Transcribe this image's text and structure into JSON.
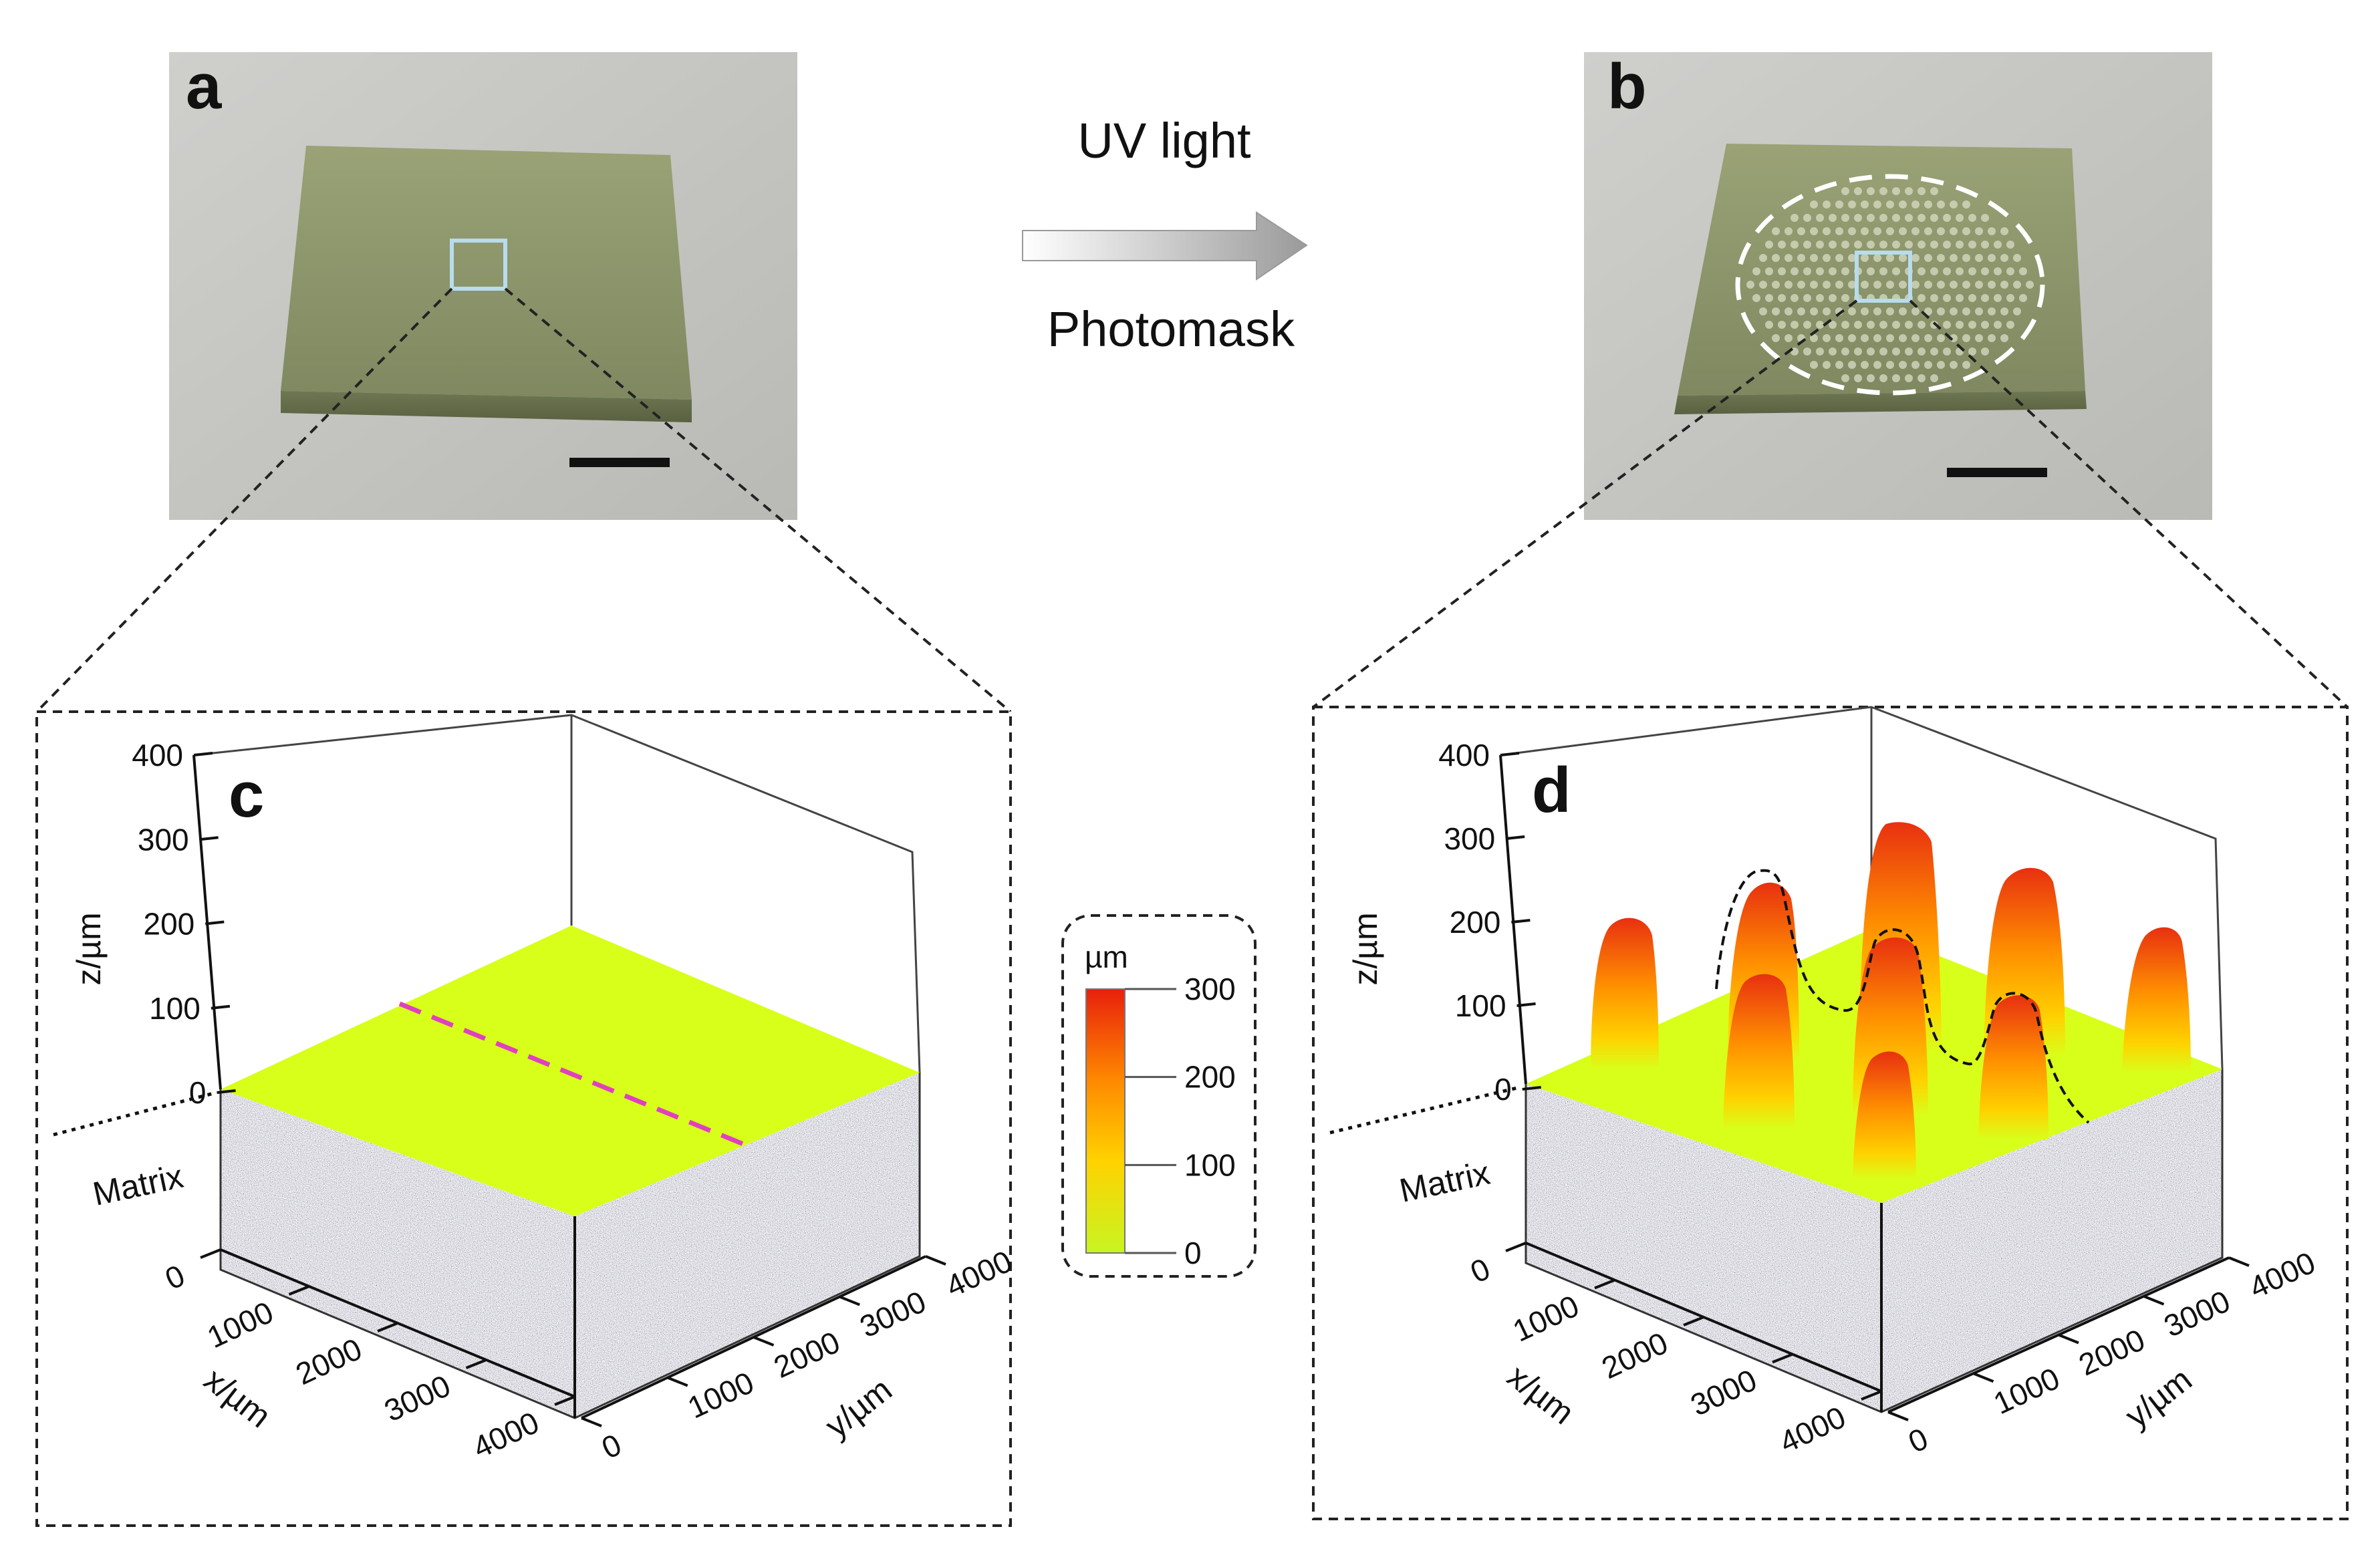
{
  "panels": {
    "a": {
      "letter": "a"
    },
    "b": {
      "letter": "b"
    },
    "c": {
      "letter": "c"
    },
    "d": {
      "letter": "d"
    }
  },
  "process": {
    "top_label": "UV light",
    "bottom_label": "Photomask"
  },
  "colorbar": {
    "unit": "µm",
    "ticks": [
      "300",
      "200",
      "100",
      "0"
    ]
  },
  "axes": {
    "z_ticks": [
      "400",
      "300",
      "200",
      "100",
      "0"
    ],
    "x_ticks": [
      "0",
      "1000",
      "2000",
      "3000",
      "4000"
    ],
    "y_ticks": [
      "0",
      "1000",
      "2000",
      "3000",
      "4000"
    ],
    "z_label": "z/µm",
    "x_label": "x/µm",
    "y_label": "y/µm",
    "matrix_label": "Matrix"
  },
  "colors": {
    "surface": "#d8ff1a",
    "peak_top": "#e83010",
    "peak_mid": "#ff9a00",
    "dash_line": "#e040c0",
    "sample_tint": "#8a9266",
    "photo_bg": "#c9c9c6"
  }
}
